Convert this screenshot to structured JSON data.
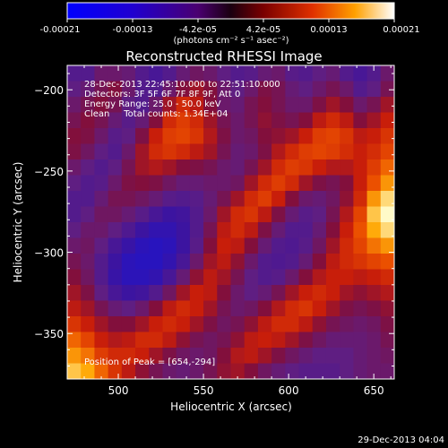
{
  "chart_data": {
    "type": "heatmap",
    "title": "Reconstructed RHESSI Image",
    "xlabel": "Heliocentric X (arcsec)",
    "ylabel": "Heliocentric Y (arcsec)",
    "xlim": [
      470,
      662
    ],
    "ylim": [
      -378,
      -185
    ],
    "xticks": [
      500,
      550,
      600,
      650
    ],
    "yticks": [
      -200,
      -250,
      -300,
      -350
    ],
    "colorbar": {
      "min": -0.00021,
      "max": 0.00021,
      "tick_labels": [
        "-0.00021",
        "-0.00013",
        "-4.2e-05",
        "4.2e-05",
        "0.00013",
        "0.00021"
      ],
      "unit": "(photons cm⁻² s⁻¹ asec⁻²)"
    },
    "annotations": [
      "28-Dec-2013 22:45:10.000 to 22:51:10.000",
      "Detectors: 3F 5F 6F 7F 8F 9F, Att 0",
      "Energy Range: 25.0 - 50.0 keV",
      "Clean     Total counts: 1.34E+04"
    ],
    "peak_label": "Position of Peak = [654,-294]",
    "peak": [
      654,
      -294
    ],
    "intensity_grid_note_free": true,
    "intensity": [
      [
        0.3,
        0.3,
        0.4,
        0.4,
        0.38,
        0.3,
        0.25,
        0.3,
        0.38,
        0.42,
        0.4,
        0.35,
        0.3,
        0.32,
        0.38,
        0.4,
        0.32,
        0.3,
        0.35,
        0.38,
        0.3,
        0.25,
        0.3,
        0.4
      ],
      [
        0.35,
        0.38,
        0.45,
        0.5,
        0.4,
        0.3,
        0.3,
        0.4,
        0.5,
        0.55,
        0.5,
        0.4,
        0.35,
        0.4,
        0.48,
        0.45,
        0.38,
        0.35,
        0.4,
        0.45,
        0.4,
        0.3,
        0.35,
        0.45
      ],
      [
        0.4,
        0.45,
        0.5,
        0.45,
        0.35,
        0.3,
        0.4,
        0.55,
        0.65,
        0.6,
        0.5,
        0.4,
        0.38,
        0.45,
        0.5,
        0.45,
        0.4,
        0.4,
        0.48,
        0.55,
        0.5,
        0.4,
        0.45,
        0.55
      ],
      [
        0.45,
        0.5,
        0.45,
        0.38,
        0.32,
        0.38,
        0.5,
        0.65,
        0.7,
        0.65,
        0.55,
        0.45,
        0.4,
        0.45,
        0.52,
        0.48,
        0.45,
        0.5,
        0.6,
        0.65,
        0.6,
        0.5,
        0.55,
        0.62
      ],
      [
        0.5,
        0.48,
        0.4,
        0.32,
        0.35,
        0.48,
        0.62,
        0.7,
        0.72,
        0.68,
        0.58,
        0.48,
        0.4,
        0.42,
        0.5,
        0.52,
        0.55,
        0.62,
        0.7,
        0.72,
        0.68,
        0.6,
        0.62,
        0.68
      ],
      [
        0.48,
        0.42,
        0.35,
        0.3,
        0.4,
        0.55,
        0.65,
        0.68,
        0.65,
        0.6,
        0.55,
        0.45,
        0.38,
        0.4,
        0.48,
        0.58,
        0.65,
        0.7,
        0.72,
        0.7,
        0.66,
        0.62,
        0.66,
        0.72
      ],
      [
        0.4,
        0.35,
        0.3,
        0.35,
        0.45,
        0.55,
        0.58,
        0.55,
        0.5,
        0.48,
        0.45,
        0.4,
        0.38,
        0.45,
        0.55,
        0.65,
        0.7,
        0.68,
        0.62,
        0.58,
        0.58,
        0.62,
        0.7,
        0.78
      ],
      [
        0.35,
        0.3,
        0.32,
        0.4,
        0.48,
        0.5,
        0.48,
        0.42,
        0.38,
        0.38,
        0.4,
        0.4,
        0.42,
        0.55,
        0.65,
        0.7,
        0.65,
        0.55,
        0.48,
        0.45,
        0.5,
        0.62,
        0.75,
        0.85
      ],
      [
        0.3,
        0.3,
        0.38,
        0.45,
        0.45,
        0.42,
        0.38,
        0.32,
        0.3,
        0.32,
        0.38,
        0.45,
        0.55,
        0.65,
        0.7,
        0.62,
        0.5,
        0.4,
        0.38,
        0.42,
        0.52,
        0.65,
        0.85,
        0.95
      ],
      [
        0.3,
        0.35,
        0.42,
        0.42,
        0.38,
        0.32,
        0.25,
        0.2,
        0.22,
        0.3,
        0.4,
        0.55,
        0.65,
        0.68,
        0.6,
        0.48,
        0.38,
        0.32,
        0.35,
        0.45,
        0.58,
        0.72,
        0.92,
        1.0
      ],
      [
        0.35,
        0.4,
        0.4,
        0.35,
        0.28,
        0.2,
        0.15,
        0.15,
        0.2,
        0.3,
        0.45,
        0.6,
        0.65,
        0.6,
        0.48,
        0.38,
        0.3,
        0.3,
        0.38,
        0.5,
        0.62,
        0.75,
        0.88,
        0.95
      ],
      [
        0.4,
        0.42,
        0.35,
        0.25,
        0.18,
        0.12,
        0.1,
        0.12,
        0.2,
        0.32,
        0.5,
        0.62,
        0.6,
        0.5,
        0.38,
        0.3,
        0.28,
        0.32,
        0.42,
        0.55,
        0.65,
        0.72,
        0.8,
        0.85
      ],
      [
        0.45,
        0.4,
        0.3,
        0.2,
        0.12,
        0.1,
        0.1,
        0.15,
        0.25,
        0.4,
        0.55,
        0.6,
        0.52,
        0.4,
        0.3,
        0.28,
        0.3,
        0.38,
        0.5,
        0.6,
        0.65,
        0.68,
        0.72,
        0.75
      ],
      [
        0.5,
        0.42,
        0.3,
        0.18,
        0.12,
        0.12,
        0.15,
        0.25,
        0.38,
        0.52,
        0.6,
        0.55,
        0.45,
        0.35,
        0.3,
        0.32,
        0.4,
        0.5,
        0.58,
        0.62,
        0.62,
        0.6,
        0.62,
        0.65
      ],
      [
        0.55,
        0.48,
        0.35,
        0.25,
        0.2,
        0.22,
        0.3,
        0.42,
        0.55,
        0.62,
        0.6,
        0.5,
        0.4,
        0.35,
        0.38,
        0.45,
        0.55,
        0.62,
        0.65,
        0.62,
        0.55,
        0.52,
        0.55,
        0.58
      ],
      [
        0.6,
        0.55,
        0.45,
        0.38,
        0.35,
        0.4,
        0.5,
        0.6,
        0.65,
        0.62,
        0.55,
        0.45,
        0.4,
        0.42,
        0.5,
        0.58,
        0.65,
        0.68,
        0.62,
        0.55,
        0.48,
        0.45,
        0.48,
        0.52
      ],
      [
        0.68,
        0.62,
        0.55,
        0.5,
        0.5,
        0.55,
        0.62,
        0.65,
        0.62,
        0.55,
        0.48,
        0.42,
        0.45,
        0.52,
        0.6,
        0.65,
        0.65,
        0.6,
        0.52,
        0.45,
        0.42,
        0.4,
        0.42,
        0.48
      ],
      [
        0.78,
        0.72,
        0.62,
        0.58,
        0.6,
        0.65,
        0.65,
        0.6,
        0.52,
        0.45,
        0.42,
        0.45,
        0.52,
        0.6,
        0.62,
        0.6,
        0.55,
        0.48,
        0.42,
        0.38,
        0.38,
        0.38,
        0.4,
        0.45
      ],
      [
        0.85,
        0.8,
        0.7,
        0.65,
        0.65,
        0.62,
        0.55,
        0.48,
        0.42,
        0.4,
        0.42,
        0.5,
        0.58,
        0.6,
        0.55,
        0.48,
        0.42,
        0.38,
        0.35,
        0.35,
        0.35,
        0.38,
        0.4,
        0.42
      ],
      [
        0.92,
        0.88,
        0.78,
        0.68,
        0.6,
        0.52,
        0.45,
        0.4,
        0.38,
        0.4,
        0.45,
        0.52,
        0.55,
        0.5,
        0.42,
        0.38,
        0.35,
        0.32,
        0.32,
        0.32,
        0.35,
        0.38,
        0.4,
        0.4
      ]
    ]
  },
  "footer": {
    "timestamp": "29-Dec-2013 04:04"
  }
}
